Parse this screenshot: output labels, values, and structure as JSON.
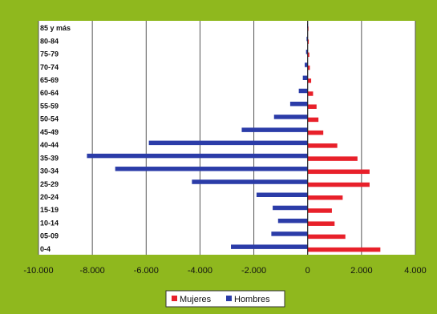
{
  "colors": {
    "frame_bg": "#8fb81e",
    "plot_bg": "#ffffff",
    "grid": "#555555",
    "mujeres": "#e8202a",
    "hombres": "#2b3ca8"
  },
  "chart_data": {
    "type": "bar",
    "orientation": "horizontal",
    "title": "",
    "xlabel": "",
    "ylabel": "",
    "xlim": [
      -10000,
      4000
    ],
    "x_ticks": [
      -10000,
      -8000,
      -6000,
      -4000,
      -2000,
      0,
      2000,
      4000
    ],
    "x_tick_labels": [
      "-10.000",
      "-8.000",
      "-6.000",
      "-4.000",
      "-2.000",
      "0",
      "2.000",
      "4.000"
    ],
    "grid": true,
    "legend_position": "bottom-center",
    "categories": [
      "85 y más",
      "80-84",
      "75-79",
      "70-74",
      "65-69",
      "60-64",
      "55-59",
      "50-54",
      "45-49",
      "40-44",
      "35-39",
      "30-34",
      "25-29",
      "20-24",
      "15-19",
      "10-14",
      "05-09",
      "0-4"
    ],
    "series": [
      {
        "name": "Mujeres",
        "values": [
          20,
          40,
          60,
          80,
          130,
          200,
          330,
          400,
          580,
          1100,
          1850,
          2300,
          2300,
          1300,
          900,
          1000,
          1400,
          2700
        ]
      },
      {
        "name": "Hombres",
        "values": [
          -20,
          -40,
          -60,
          -110,
          -180,
          -330,
          -650,
          -1250,
          -2450,
          -5900,
          -8200,
          -7150,
          -4300,
          -1900,
          -1300,
          -1100,
          -1350,
          -2850
        ]
      }
    ]
  }
}
